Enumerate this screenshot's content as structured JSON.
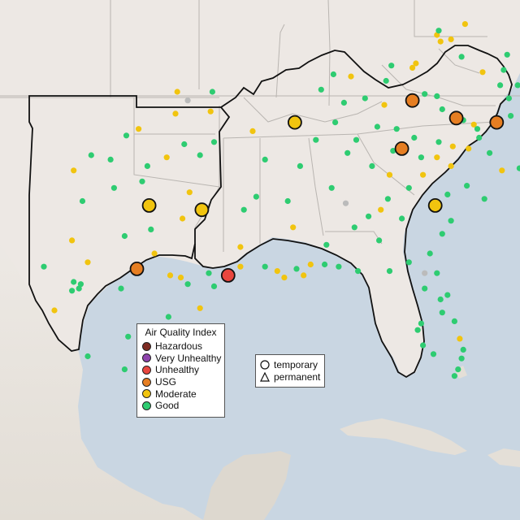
{
  "colors": {
    "water": "#c9d6e2",
    "land": "#ede8e4",
    "land_south": "#ddd8cf",
    "border": "#111111",
    "state_line": "#b9b5b1",
    "Hazardous": "#7e2b22",
    "Very Unhealthy": "#8e44ad",
    "Unhealthy": "#e8463f",
    "USG": "#e67e22",
    "Moderate": "#f1c40f",
    "Good": "#2ecc71",
    "nodata": "#bbbbbb"
  },
  "legend": {
    "title": "Air Quality Index",
    "items": [
      "Hazardous",
      "Very Unhealthy",
      "Unhealthy",
      "USG",
      "Moderate",
      "Good"
    ]
  },
  "shape_legend": {
    "items": [
      {
        "label": "temporary",
        "shape": "circle"
      },
      {
        "label": "permanent",
        "shape": "triangle"
      }
    ]
  },
  "monitors_large": [
    {
      "lon": -89.7,
      "lat": 37.2,
      "category": "Moderate"
    },
    {
      "lon": -98.0,
      "lat": 33.4,
      "category": "Moderate"
    },
    {
      "lon": -95.0,
      "lat": 33.2,
      "category": "Moderate"
    },
    {
      "lon": -81.7,
      "lat": 33.4,
      "category": "Moderate"
    },
    {
      "lon": -83.0,
      "lat": 38.2,
      "category": "USG"
    },
    {
      "lon": -80.5,
      "lat": 37.4,
      "category": "USG"
    },
    {
      "lon": -78.2,
      "lat": 37.2,
      "category": "USG"
    },
    {
      "lon": -83.6,
      "lat": 36.0,
      "category": "USG"
    },
    {
      "lon": -98.7,
      "lat": 30.5,
      "category": "USG"
    },
    {
      "lon": -93.5,
      "lat": 30.2,
      "category": "Unhealthy"
    }
  ],
  "monitors_small": [
    {
      "lon": -101.3,
      "lat": 35.7,
      "category": "Good"
    },
    {
      "lon": -99.3,
      "lat": 36.6,
      "category": "Good"
    },
    {
      "lon": -96.0,
      "lat": 36.2,
      "category": "Good"
    },
    {
      "lon": -94.5,
      "lat": 37.7,
      "category": "Moderate"
    },
    {
      "lon": -96.5,
      "lat": 37.6,
      "category": "Moderate"
    },
    {
      "lon": -95.8,
      "lat": 38.2,
      "category": "nodata"
    },
    {
      "lon": -94.4,
      "lat": 38.6,
      "category": "Good"
    },
    {
      "lon": -96.4,
      "lat": 38.6,
      "category": "Moderate"
    },
    {
      "lon": -98.6,
      "lat": 36.9,
      "category": "Moderate"
    },
    {
      "lon": -100.2,
      "lat": 35.5,
      "category": "Good"
    },
    {
      "lon": -98.1,
      "lat": 35.2,
      "category": "Good"
    },
    {
      "lon": -97.0,
      "lat": 35.6,
      "category": "Moderate"
    },
    {
      "lon": -95.1,
      "lat": 35.7,
      "category": "Good"
    },
    {
      "lon": -94.3,
      "lat": 36.3,
      "category": "Good"
    },
    {
      "lon": -102.3,
      "lat": 35.0,
      "category": "Moderate"
    },
    {
      "lon": -100.0,
      "lat": 34.2,
      "category": "Good"
    },
    {
      "lon": -101.8,
      "lat": 33.6,
      "category": "Good"
    },
    {
      "lon": -98.4,
      "lat": 34.5,
      "category": "Good"
    },
    {
      "lon": -95.7,
      "lat": 34.0,
      "category": "Moderate"
    },
    {
      "lon": -96.1,
      "lat": 32.8,
      "category": "Moderate"
    },
    {
      "lon": -97.9,
      "lat": 32.3,
      "category": "Good"
    },
    {
      "lon": -99.4,
      "lat": 32.0,
      "category": "Good"
    },
    {
      "lon": -102.4,
      "lat": 31.8,
      "category": "Moderate"
    },
    {
      "lon": -104.0,
      "lat": 30.6,
      "category": "Good"
    },
    {
      "lon": -101.5,
      "lat": 30.8,
      "category": "Moderate"
    },
    {
      "lon": -97.7,
      "lat": 31.2,
      "category": "Moderate"
    },
    {
      "lon": -99.6,
      "lat": 29.6,
      "category": "Good"
    },
    {
      "lon": -101.9,
      "lat": 29.8,
      "category": "Good"
    },
    {
      "lon": -102.3,
      "lat": 29.9,
      "category": "Good"
    },
    {
      "lon": -102.0,
      "lat": 29.6,
      "category": "Good"
    },
    {
      "lon": -102.4,
      "lat": 29.5,
      "category": "Good"
    },
    {
      "lon": -96.2,
      "lat": 30.1,
      "category": "Moderate"
    },
    {
      "lon": -96.8,
      "lat": 30.2,
      "category": "Moderate"
    },
    {
      "lon": -95.8,
      "lat": 29.8,
      "category": "Good"
    },
    {
      "lon": -94.6,
      "lat": 30.3,
      "category": "Good"
    },
    {
      "lon": -94.3,
      "lat": 29.7,
      "category": "Good"
    },
    {
      "lon": -95.1,
      "lat": 28.7,
      "category": "Moderate"
    },
    {
      "lon": -96.9,
      "lat": 28.3,
      "category": "Good"
    },
    {
      "lon": -97.8,
      "lat": 27.6,
      "category": "Good"
    },
    {
      "lon": -99.2,
      "lat": 27.4,
      "category": "Good"
    },
    {
      "lon": -103.4,
      "lat": 28.6,
      "category": "Moderate"
    },
    {
      "lon": -101.5,
      "lat": 26.5,
      "category": "Good"
    },
    {
      "lon": -99.4,
      "lat": 25.9,
      "category": "Good"
    },
    {
      "lon": -92.1,
      "lat": 36.8,
      "category": "Moderate"
    },
    {
      "lon": -91.4,
      "lat": 35.5,
      "category": "Good"
    },
    {
      "lon": -91.9,
      "lat": 33.8,
      "category": "Good"
    },
    {
      "lon": -92.6,
      "lat": 33.2,
      "category": "Good"
    },
    {
      "lon": -92.8,
      "lat": 31.5,
      "category": "Moderate"
    },
    {
      "lon": -92.8,
      "lat": 30.6,
      "category": "Moderate"
    },
    {
      "lon": -91.4,
      "lat": 30.6,
      "category": "Good"
    },
    {
      "lon": -90.7,
      "lat": 30.4,
      "category": "Moderate"
    },
    {
      "lon": -90.3,
      "lat": 30.1,
      "category": "Moderate"
    },
    {
      "lon": -89.6,
      "lat": 30.5,
      "category": "Good"
    },
    {
      "lon": -89.2,
      "lat": 30.2,
      "category": "Moderate"
    },
    {
      "lon": -88.8,
      "lat": 30.7,
      "category": "Moderate"
    },
    {
      "lon": -89.8,
      "lat": 32.4,
      "category": "Moderate"
    },
    {
      "lon": -90.1,
      "lat": 33.6,
      "category": "Good"
    },
    {
      "lon": -89.4,
      "lat": 35.2,
      "category": "Good"
    },
    {
      "lon": -88.5,
      "lat": 36.4,
      "category": "Good"
    },
    {
      "lon": -88.2,
      "lat": 38.7,
      "category": "Good"
    },
    {
      "lon": -87.5,
      "lat": 39.4,
      "category": "Good"
    },
    {
      "lon": -86.5,
      "lat": 39.3,
      "category": "Moderate"
    },
    {
      "lon": -86.9,
      "lat": 38.1,
      "category": "Good"
    },
    {
      "lon": -87.4,
      "lat": 37.2,
      "category": "Good"
    },
    {
      "lon": -85.7,
      "lat": 38.3,
      "category": "Good"
    },
    {
      "lon": -86.2,
      "lat": 36.4,
      "category": "Good"
    },
    {
      "lon": -86.7,
      "lat": 35.8,
      "category": "Good"
    },
    {
      "lon": -85.3,
      "lat": 35.2,
      "category": "Good"
    },
    {
      "lon": -84.3,
      "lat": 34.8,
      "category": "Moderate"
    },
    {
      "lon": -87.6,
      "lat": 34.2,
      "category": "Good"
    },
    {
      "lon": -86.8,
      "lat": 33.5,
      "category": "nodata"
    },
    {
      "lon": -86.3,
      "lat": 32.4,
      "category": "Good"
    },
    {
      "lon": -87.9,
      "lat": 31.6,
      "category": "Good"
    },
    {
      "lon": -88.0,
      "lat": 30.7,
      "category": "Good"
    },
    {
      "lon": -87.2,
      "lat": 30.6,
      "category": "Good"
    },
    {
      "lon": -86.1,
      "lat": 30.4,
      "category": "Good"
    },
    {
      "lon": -85.5,
      "lat": 32.9,
      "category": "Good"
    },
    {
      "lon": -84.4,
      "lat": 33.7,
      "category": "Good"
    },
    {
      "lon": -84.8,
      "lat": 33.2,
      "category": "Moderate"
    },
    {
      "lon": -83.6,
      "lat": 32.8,
      "category": "Good"
    },
    {
      "lon": -84.9,
      "lat": 31.8,
      "category": "Good"
    },
    {
      "lon": -84.3,
      "lat": 30.4,
      "category": "Good"
    },
    {
      "lon": -83.2,
      "lat": 30.8,
      "category": "Good"
    },
    {
      "lon": -82.3,
      "lat": 30.3,
      "category": "nodata"
    },
    {
      "lon": -81.6,
      "lat": 30.3,
      "category": "Good"
    },
    {
      "lon": -81.4,
      "lat": 29.1,
      "category": "Good"
    },
    {
      "lon": -82.3,
      "lat": 29.6,
      "category": "Good"
    },
    {
      "lon": -81.3,
      "lat": 28.5,
      "category": "Good"
    },
    {
      "lon": -82.5,
      "lat": 28.0,
      "category": "Good"
    },
    {
      "lon": -82.7,
      "lat": 27.7,
      "category": "Good"
    },
    {
      "lon": -82.4,
      "lat": 27.0,
      "category": "Good"
    },
    {
      "lon": -81.8,
      "lat": 26.6,
      "category": "Good"
    },
    {
      "lon": -80.4,
      "lat": 25.9,
      "category": "Good"
    },
    {
      "lon": -80.6,
      "lat": 25.6,
      "category": "Good"
    },
    {
      "lon": -80.2,
      "lat": 26.4,
      "category": "Good"
    },
    {
      "lon": -80.1,
      "lat": 26.8,
      "category": "Good"
    },
    {
      "lon": -80.3,
      "lat": 27.3,
      "category": "Moderate"
    },
    {
      "lon": -80.6,
      "lat": 28.1,
      "category": "Good"
    },
    {
      "lon": -81.0,
      "lat": 29.3,
      "category": "Good"
    },
    {
      "lon": -82.0,
      "lat": 31.2,
      "category": "Good"
    },
    {
      "lon": -81.3,
      "lat": 32.1,
      "category": "Good"
    },
    {
      "lon": -80.8,
      "lat": 32.7,
      "category": "Good"
    },
    {
      "lon": -81.0,
      "lat": 33.9,
      "category": "Good"
    },
    {
      "lon": -79.9,
      "lat": 34.3,
      "category": "Good"
    },
    {
      "lon": -78.9,
      "lat": 33.7,
      "category": "Good"
    },
    {
      "lon": -82.4,
      "lat": 34.8,
      "category": "Moderate"
    },
    {
      "lon": -83.2,
      "lat": 34.2,
      "category": "Good"
    },
    {
      "lon": -80.8,
      "lat": 35.2,
      "category": "Moderate"
    },
    {
      "lon": -81.6,
      "lat": 35.6,
      "category": "Moderate"
    },
    {
      "lon": -82.5,
      "lat": 35.6,
      "category": "Good"
    },
    {
      "lon": -79.8,
      "lat": 36.0,
      "category": "Moderate"
    },
    {
      "lon": -78.6,
      "lat": 35.8,
      "category": "Good"
    },
    {
      "lon": -77.9,
      "lat": 35.0,
      "category": "Moderate"
    },
    {
      "lon": -76.9,
      "lat": 35.1,
      "category": "Good"
    },
    {
      "lon": -79.2,
      "lat": 36.5,
      "category": "Good"
    },
    {
      "lon": -77.4,
      "lat": 37.5,
      "category": "Good"
    },
    {
      "lon": -76.3,
      "lat": 36.9,
      "category": "Good"
    },
    {
      "lon": -76.7,
      "lat": 37.0,
      "category": "Moderate"
    },
    {
      "lon": -77.5,
      "lat": 38.3,
      "category": "Good"
    },
    {
      "lon": -77.0,
      "lat": 38.9,
      "category": "Good"
    },
    {
      "lon": -76.6,
      "lat": 39.3,
      "category": "Good"
    },
    {
      "lon": -77.8,
      "lat": 39.6,
      "category": "Good"
    },
    {
      "lon": -79.0,
      "lat": 39.5,
      "category": "Moderate"
    },
    {
      "lon": -80.2,
      "lat": 40.2,
      "category": "Good"
    },
    {
      "lon": -81.6,
      "lat": 38.4,
      "category": "Good"
    },
    {
      "lon": -82.3,
      "lat": 38.5,
      "category": "Good"
    },
    {
      "lon": -81.3,
      "lat": 37.8,
      "category": "Good"
    },
    {
      "lon": -80.1,
      "lat": 37.3,
      "category": "Good"
    },
    {
      "lon": -79.5,
      "lat": 37.1,
      "category": "Moderate"
    },
    {
      "lon": -82.8,
      "lat": 39.9,
      "category": "Moderate"
    },
    {
      "lon": -83.0,
      "lat": 39.7,
      "category": "Moderate"
    },
    {
      "lon": -84.2,
      "lat": 39.8,
      "category": "Good"
    },
    {
      "lon": -84.5,
      "lat": 39.1,
      "category": "Good"
    },
    {
      "lon": -84.6,
      "lat": 38.0,
      "category": "Moderate"
    },
    {
      "lon": -85.0,
      "lat": 37.0,
      "category": "Good"
    },
    {
      "lon": -83.9,
      "lat": 36.9,
      "category": "Good"
    },
    {
      "lon": -82.9,
      "lat": 36.5,
      "category": "Good"
    },
    {
      "lon": -84.1,
      "lat": 35.9,
      "category": "Good"
    },
    {
      "lon": -81.5,
      "lat": 36.3,
      "category": "Good"
    },
    {
      "lon": -80.7,
      "lat": 36.1,
      "category": "Moderate"
    },
    {
      "lon": -79.3,
      "lat": 36.9,
      "category": "Good"
    },
    {
      "lon": -78.0,
      "lat": 38.9,
      "category": "Good"
    },
    {
      "lon": -76.0,
      "lat": 38.3,
      "category": "Good"
    },
    {
      "lon": -75.7,
      "lat": 39.7,
      "category": "Good"
    },
    {
      "lon": -74.9,
      "lat": 40.2,
      "category": "Moderate"
    },
    {
      "lon": -76.3,
      "lat": 40.0,
      "category": "Good"
    },
    {
      "lon": -77.6,
      "lat": 40.3,
      "category": "Good"
    },
    {
      "lon": -80.0,
      "lat": 41.7,
      "category": "Moderate"
    },
    {
      "lon": -75.4,
      "lat": 41.0,
      "category": "Good"
    },
    {
      "lon": -74.6,
      "lat": 40.7,
      "category": "Good"
    },
    {
      "lon": -74.1,
      "lat": 40.9,
      "category": "Good"
    },
    {
      "lon": -80.8,
      "lat": 41.0,
      "category": "Moderate"
    },
    {
      "lon": -81.4,
      "lat": 40.9,
      "category": "Moderate"
    },
    {
      "lon": -81.6,
      "lat": 41.2,
      "category": "Moderate"
    },
    {
      "lon": -81.5,
      "lat": 41.4,
      "category": "Good"
    },
    {
      "lon": -76.0,
      "lat": 36.7,
      "category": "Good"
    }
  ]
}
